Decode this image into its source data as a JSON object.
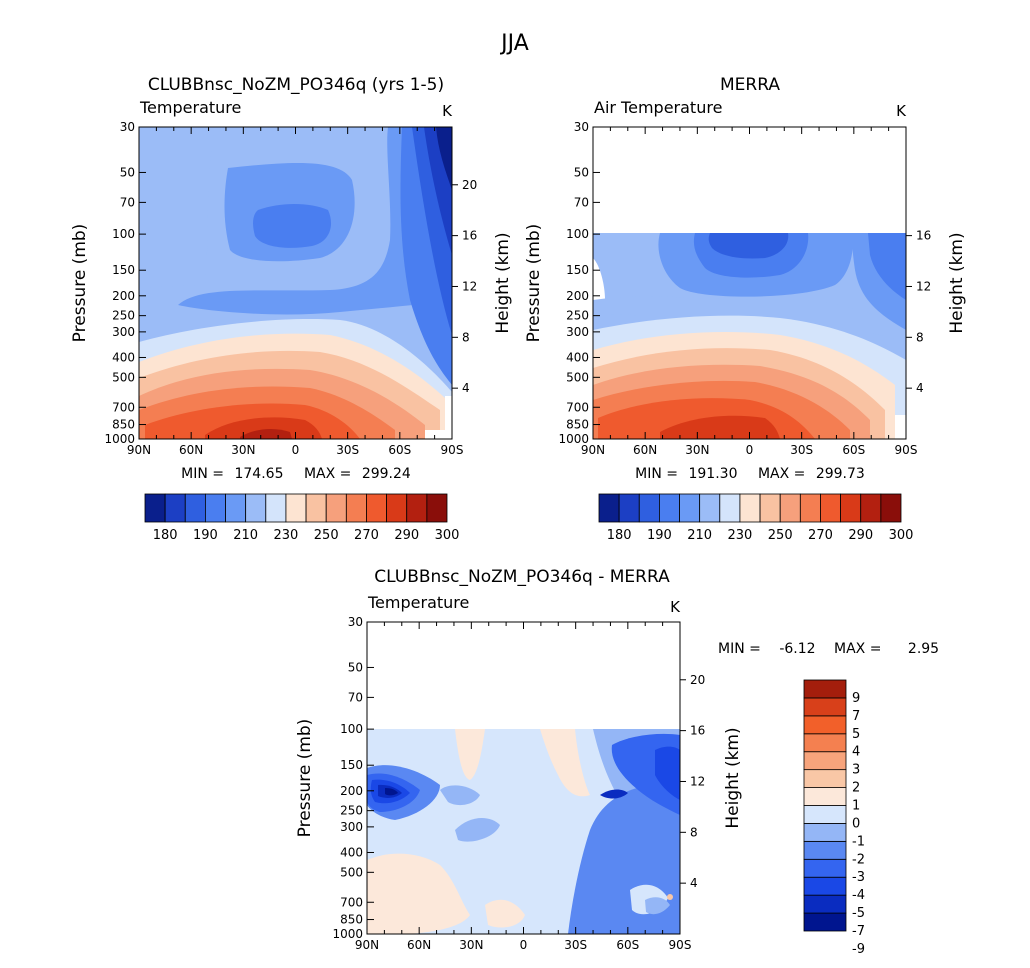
{
  "season_title": "JJA",
  "colors": {
    "abs": [
      "#0a1f8c",
      "#1c3fc4",
      "#2f5fe0",
      "#4a7ef0",
      "#6a9af5",
      "#9bbcf7",
      "#d4e4fb",
      "#fde4d2",
      "#f9c2a2",
      "#f6a07c",
      "#f47e52",
      "#ef5a2e",
      "#d93a18",
      "#b32010",
      "#8a0e0a"
    ],
    "diff": [
      "#00158f",
      "#0a2cc0",
      "#1a48e6",
      "#3465f0",
      "#5a88f2",
      "#94b6f6",
      "#d6e6fc",
      "#fce8da",
      "#f9c7a6",
      "#f7a47c",
      "#f48050",
      "#f2602a",
      "#d8401a",
      "#a41e0c"
    ]
  },
  "panels": [
    {
      "title": "CLUBBnsc_NoZM_PO346q (yrs 1-5)",
      "variable": "Temperature",
      "units": "K",
      "stats": {
        "min_label": "MIN =",
        "min": "174.65",
        "max_label": "MAX =",
        "max": "299.24"
      }
    },
    {
      "title": "MERRA",
      "variable": "Air Temperature",
      "units": "K",
      "stats": {
        "min_label": "MIN =",
        "min": "191.30",
        "max_label": "MAX =",
        "max": "299.73"
      }
    },
    {
      "title": "CLUBBnsc_NoZM_PO346q - MERRA",
      "variable": "Temperature",
      "units": "K",
      "stats": {
        "min_label": "MIN =",
        "min": "-6.12",
        "max_label": "MAX =",
        "max": "2.95"
      }
    }
  ],
  "chart_data": [
    {
      "type": "heatmap",
      "title": "CLUBBnsc_NoZM_PO346q (yrs 1-5)",
      "subtitle": "Temperature",
      "units": "K",
      "xlabel": "",
      "ylabel": "Pressure (mb)",
      "y2label": "Height (km)",
      "x_ticks": [
        "90N",
        "60N",
        "30N",
        "0",
        "30S",
        "60S",
        "90S"
      ],
      "y_ticks": [
        30,
        50,
        70,
        100,
        150,
        200,
        250,
        300,
        400,
        500,
        700,
        850,
        1000
      ],
      "y2_ticks": [
        4,
        8,
        12,
        16,
        20
      ],
      "colorbar_labels": [
        "180",
        "190",
        "210",
        "230",
        "250",
        "270",
        "290",
        "300"
      ],
      "min": 174.65,
      "max": 299.24
    },
    {
      "type": "heatmap",
      "title": "MERRA",
      "subtitle": "Air Temperature",
      "units": "K",
      "ylabel": "Pressure (mb)",
      "y2label": "Height (km)",
      "x_ticks": [
        "90N",
        "60N",
        "30N",
        "0",
        "30S",
        "60S",
        "90S"
      ],
      "y_ticks": [
        30,
        50,
        70,
        100,
        150,
        200,
        250,
        300,
        400,
        500,
        700,
        850,
        1000
      ],
      "y2_ticks": [
        4,
        8,
        12,
        16
      ],
      "data_top_pressure": 100,
      "colorbar_labels": [
        "180",
        "190",
        "210",
        "230",
        "250",
        "270",
        "290",
        "300"
      ],
      "min": 191.3,
      "max": 299.73
    },
    {
      "type": "heatmap",
      "title": "CLUBBnsc_NoZM_PO346q - MERRA",
      "subtitle": "Temperature",
      "units": "K",
      "ylabel": "Pressure (mb)",
      "y2label": "Height (km)",
      "x_ticks": [
        "90N",
        "60N",
        "30N",
        "0",
        "30S",
        "60S",
        "90S"
      ],
      "y_ticks": [
        30,
        50,
        70,
        100,
        150,
        200,
        250,
        300,
        400,
        500,
        700,
        850,
        1000
      ],
      "y2_ticks": [
        4,
        8,
        12,
        16,
        20
      ],
      "data_top_pressure": 100,
      "colorbar_labels": [
        "9",
        "7",
        "5",
        "4",
        "3",
        "2",
        "1",
        "0",
        "-1",
        "-2",
        "-3",
        "-4",
        "-5",
        "-7",
        "-9"
      ],
      "min": -6.12,
      "max": 2.95
    }
  ]
}
